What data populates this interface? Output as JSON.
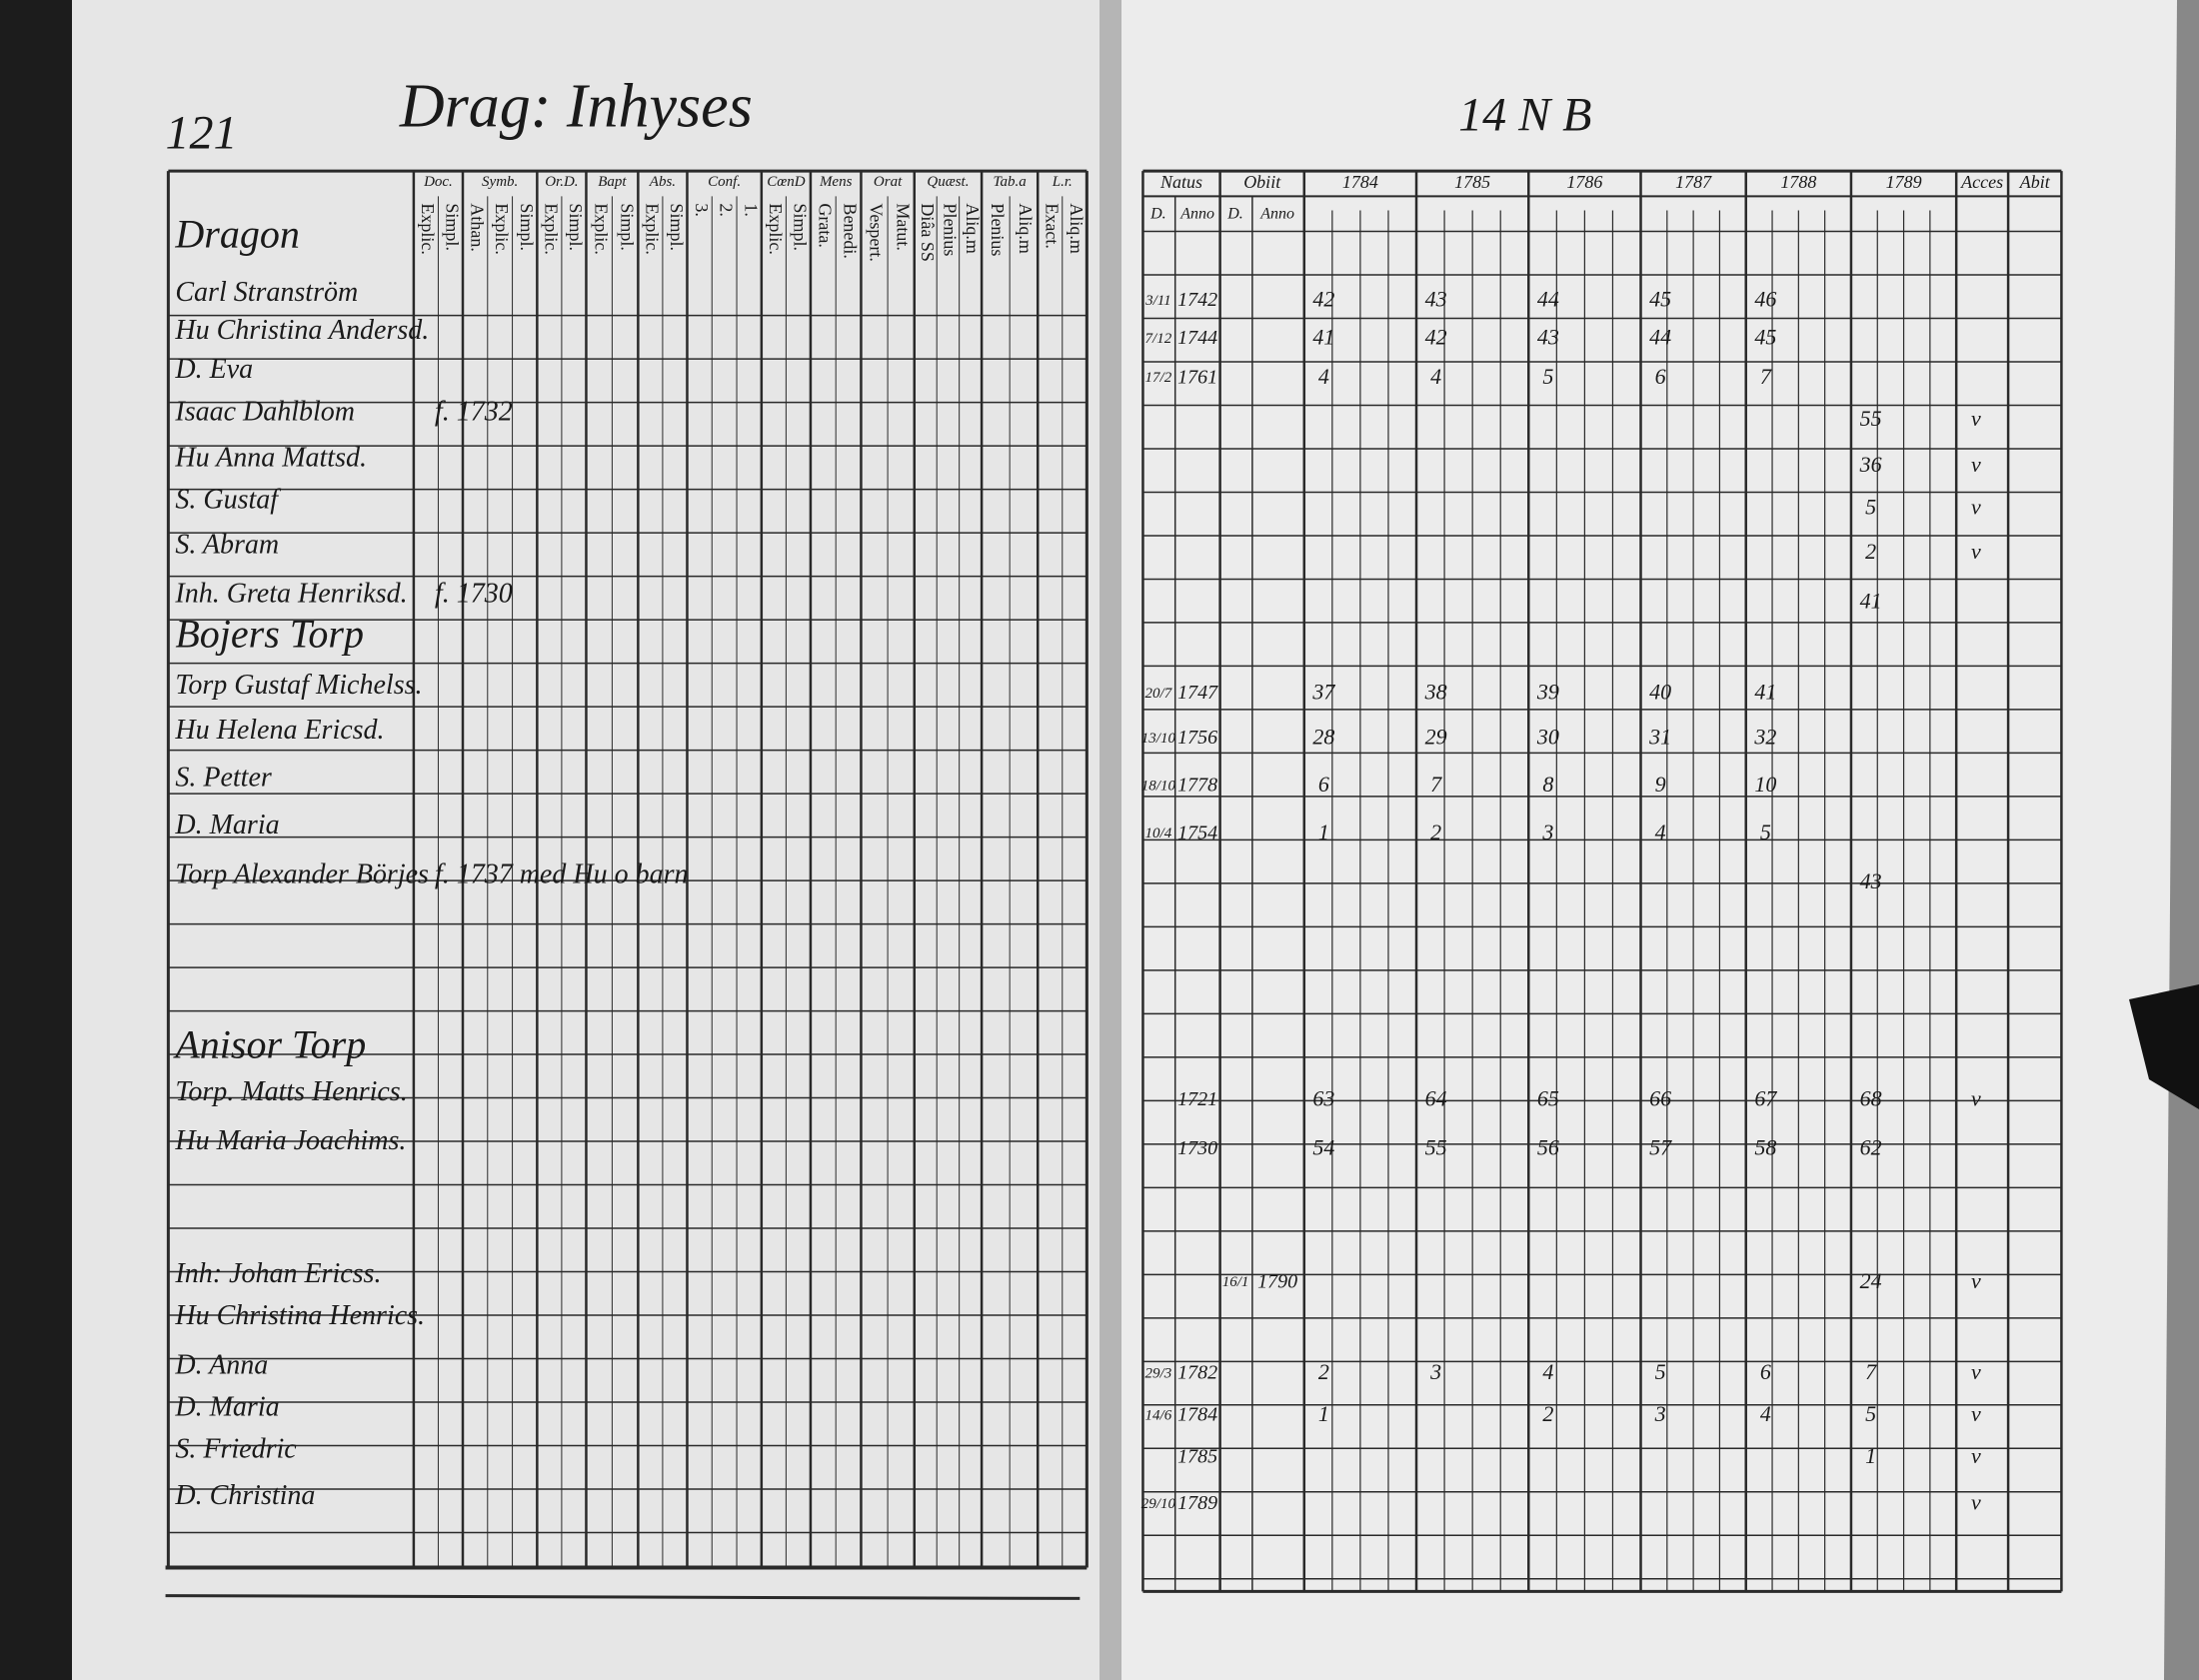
{
  "left_page": {
    "page_number": "121",
    "title": "Drag: Inhyses",
    "columns": [
      {
        "heading": "Doc.",
        "subs": [
          "Explic.",
          "Simpl."
        ]
      },
      {
        "heading": "Symb.",
        "subs": [
          "Athan.",
          "Explic.",
          "Simpl."
        ]
      },
      {
        "heading": "Or.D.",
        "subs": [
          "Explic.",
          "Simpl."
        ]
      },
      {
        "heading": "Bapt",
        "subs": [
          "Explic.",
          "Simpl."
        ]
      },
      {
        "heading": "Abs.",
        "subs": [
          "Explic.",
          "Simpl."
        ]
      },
      {
        "heading": "Conf.",
        "subs": [
          "3.",
          "2.",
          "1."
        ]
      },
      {
        "heading": "CœnD",
        "subs": [
          "Explic.",
          "Simpl."
        ]
      },
      {
        "heading": "Mens",
        "subs": [
          "Grata.",
          "Benedi."
        ]
      },
      {
        "heading": "Orat",
        "subs": [
          "Vespert.",
          "Matut."
        ]
      },
      {
        "heading": "Quæst.",
        "subs": [
          "Diâa SS",
          "Plenius",
          "Aliq.m"
        ]
      },
      {
        "heading": "Tab.a",
        "subs": [
          "Plenius",
          "Aliq.m"
        ]
      },
      {
        "heading": "L.r.",
        "subs": [
          "Exact.",
          "Aliq.m"
        ]
      }
    ],
    "rows": [
      {
        "name": "Dragon"
      },
      {
        "name": "Carl Stranström"
      },
      {
        "name": "Hu Christina Andersd."
      },
      {
        "name": "D. Eva"
      },
      {
        "name": "Isaac Dahlblom",
        "note": "f. 1732"
      },
      {
        "name": "Hu Anna Mattsd."
      },
      {
        "name": "S. Gustaf"
      },
      {
        "name": "S. Abram"
      },
      {
        "name": "Inh. Greta Henriksd.",
        "note": "f. 1730"
      },
      {
        "name": "Bojers Torp"
      },
      {
        "name": "Torp Gustaf Michelss."
      },
      {
        "name": "Hu Helena Ericsd."
      },
      {
        "name": "S. Petter"
      },
      {
        "name": "D. Maria"
      },
      {
        "name": "Torp Alexander Börjes",
        "note": "f. 1737 med Hu o barn"
      },
      {
        "name": "Anisor Torp"
      },
      {
        "name": "Torp. Matts Henrics."
      },
      {
        "name": "Hu Maria Joachims."
      },
      {
        "name": "Inh: Johan Ericss."
      },
      {
        "name": "Hu Christina Henrics."
      },
      {
        "name": "D. Anna"
      },
      {
        "name": "D. Maria"
      },
      {
        "name": "S. Friedric"
      },
      {
        "name": "D. Christina"
      }
    ]
  },
  "right_page": {
    "page_number": "14 N B",
    "columns": [
      "Natus",
      "Obiit",
      "1784",
      "1785",
      "1786",
      "1787",
      "1788",
      "1789",
      "Acces",
      "Abit"
    ],
    "sub_columns": [
      "D.",
      "Anno",
      "D.",
      "Anno"
    ],
    "rows": [
      null,
      {
        "natus_day": "3/11",
        "natus_anno": "1742",
        "years": [
          "42",
          "43",
          "44",
          "45",
          "46",
          null
        ]
      },
      {
        "natus_day": "7/12",
        "natus_anno": "1744",
        "years": [
          "41",
          "42",
          "43",
          "44",
          "45",
          null
        ]
      },
      {
        "natus_day": "17/2",
        "natus_anno": "1761",
        "years": [
          "4",
          "4",
          "5",
          "6",
          "7",
          null
        ]
      },
      {
        "years": [
          null,
          null,
          null,
          null,
          null,
          "55"
        ],
        "acces": "v"
      },
      {
        "years": [
          null,
          null,
          null,
          null,
          null,
          "36"
        ],
        "acces": "v"
      },
      {
        "years": [
          null,
          null,
          null,
          null,
          null,
          "5"
        ],
        "acces": "v"
      },
      {
        "years": [
          null,
          null,
          null,
          null,
          null,
          "2"
        ],
        "acces": "v"
      },
      {
        "years": [
          null,
          null,
          null,
          null,
          null,
          "41"
        ]
      },
      null,
      {
        "natus_day": "20/7",
        "natus_anno": "1747",
        "years": [
          "37",
          "38",
          "39",
          "40",
          "41",
          null
        ]
      },
      {
        "natus_day": "13/10",
        "natus_anno": "1756",
        "years": [
          "28",
          "29",
          "30",
          "31",
          "32",
          null
        ]
      },
      {
        "natus_day": "18/10",
        "natus_anno": "1778",
        "years": [
          "6",
          "7",
          "8",
          "9",
          "10",
          null
        ]
      },
      {
        "natus_day": "10/4",
        "natus_anno": "1754",
        "years": [
          "1",
          "2",
          "3",
          "4",
          "5",
          null
        ]
      },
      {
        "years": [
          null,
          null,
          null,
          null,
          null,
          "43"
        ]
      },
      null,
      {
        "natus_anno": "1721",
        "years": [
          "63",
          "64",
          "65",
          "66",
          "67",
          "68"
        ],
        "acces": "v"
      },
      {
        "natus_anno": "1730",
        "years": [
          "54",
          "55",
          "56",
          "57",
          "58",
          "62"
        ]
      },
      {
        "obiit_day": "16/1",
        "obiit_anno": "1790",
        "years": [
          null,
          null,
          null,
          null,
          null,
          "24"
        ],
        "acces": "v"
      },
      null,
      {
        "natus_day": "29/3",
        "natus_anno": "1782",
        "years": [
          "2",
          "3",
          "4",
          "5",
          "6",
          "7"
        ],
        "acces": "v"
      },
      {
        "natus_day": "14/6",
        "natus_anno": "1784",
        "years": [
          "1",
          null,
          "2",
          "3",
          "4",
          "5"
        ],
        "acces": "v"
      },
      {
        "natus_anno": "1785",
        "years": [
          null,
          null,
          null,
          null,
          null,
          "1"
        ],
        "acces": "v"
      },
      {
        "natus_day": "29/10",
        "natus_anno": "1789",
        "acces": "v"
      }
    ]
  }
}
